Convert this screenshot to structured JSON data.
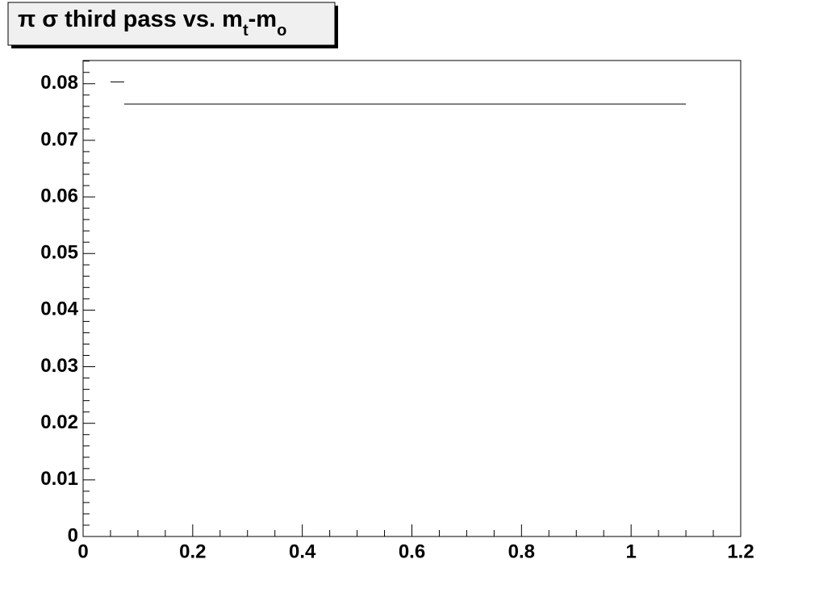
{
  "chart_data": {
    "type": "histogram",
    "title": [
      "π σ third pass vs. m",
      "t",
      "-m",
      "o"
    ],
    "bins": [
      0.05,
      0.075,
      1.1
    ],
    "counts": [
      0.0803,
      0.0764
    ],
    "color": "#000000",
    "xlim": [
      0,
      1.2
    ],
    "xticks": [
      0,
      0.2,
      0.4,
      0.6,
      0.8,
      1,
      1.2
    ],
    "ylim": [
      0,
      0.0841
    ],
    "yticks": [
      0,
      0.01,
      0.02,
      0.03,
      0.04,
      0.05,
      0.06,
      0.07,
      0.08
    ]
  }
}
